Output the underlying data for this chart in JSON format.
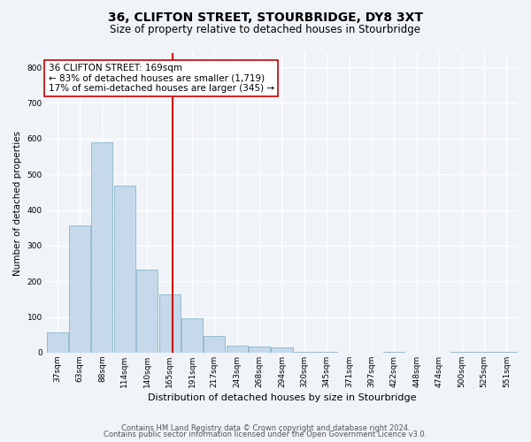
{
  "title1": "36, CLIFTON STREET, STOURBRIDGE, DY8 3XT",
  "title2": "Size of property relative to detached houses in Stourbridge",
  "xlabel": "Distribution of detached houses by size in Stourbridge",
  "ylabel": "Number of detached properties",
  "bar_color": "#c6d9ea",
  "bar_edge_color": "#7aaac5",
  "categories": [
    "37sqm",
    "63sqm",
    "88sqm",
    "114sqm",
    "140sqm",
    "165sqm",
    "191sqm",
    "217sqm",
    "243sqm",
    "268sqm",
    "294sqm",
    "320sqm",
    "345sqm",
    "371sqm",
    "397sqm",
    "422sqm",
    "448sqm",
    "474sqm",
    "500sqm",
    "525sqm",
    "551sqm"
  ],
  "values": [
    57,
    357,
    590,
    467,
    232,
    163,
    96,
    46,
    20,
    18,
    14,
    1,
    1,
    0,
    0,
    1,
    0,
    0,
    2,
    2,
    1
  ],
  "vline_x": 5.15,
  "vline_color": "#cc0000",
  "annotation_line1": "36 CLIFTON STREET: 169sqm",
  "annotation_line2": "← 83% of detached houses are smaller (1,719)",
  "annotation_line3": "17% of semi-detached houses are larger (345) →",
  "ylim_max": 840,
  "yticks": [
    0,
    100,
    200,
    300,
    400,
    500,
    600,
    700,
    800
  ],
  "bg_color": "#f0f4f8",
  "grid_color": "#ffffff",
  "vline_box_color": "#cc0000",
  "title1_fontsize": 10,
  "title2_fontsize": 8.5,
  "xlabel_fontsize": 8,
  "ylabel_fontsize": 7.5,
  "tick_fontsize": 6.5,
  "annot_fontsize": 7.5,
  "footnote1": "Contains HM Land Registry data © Crown copyright and database right 2024.",
  "footnote2": "Contains public sector information licensed under the Open Government Licence v3.0.",
  "footnote_fontsize": 6
}
